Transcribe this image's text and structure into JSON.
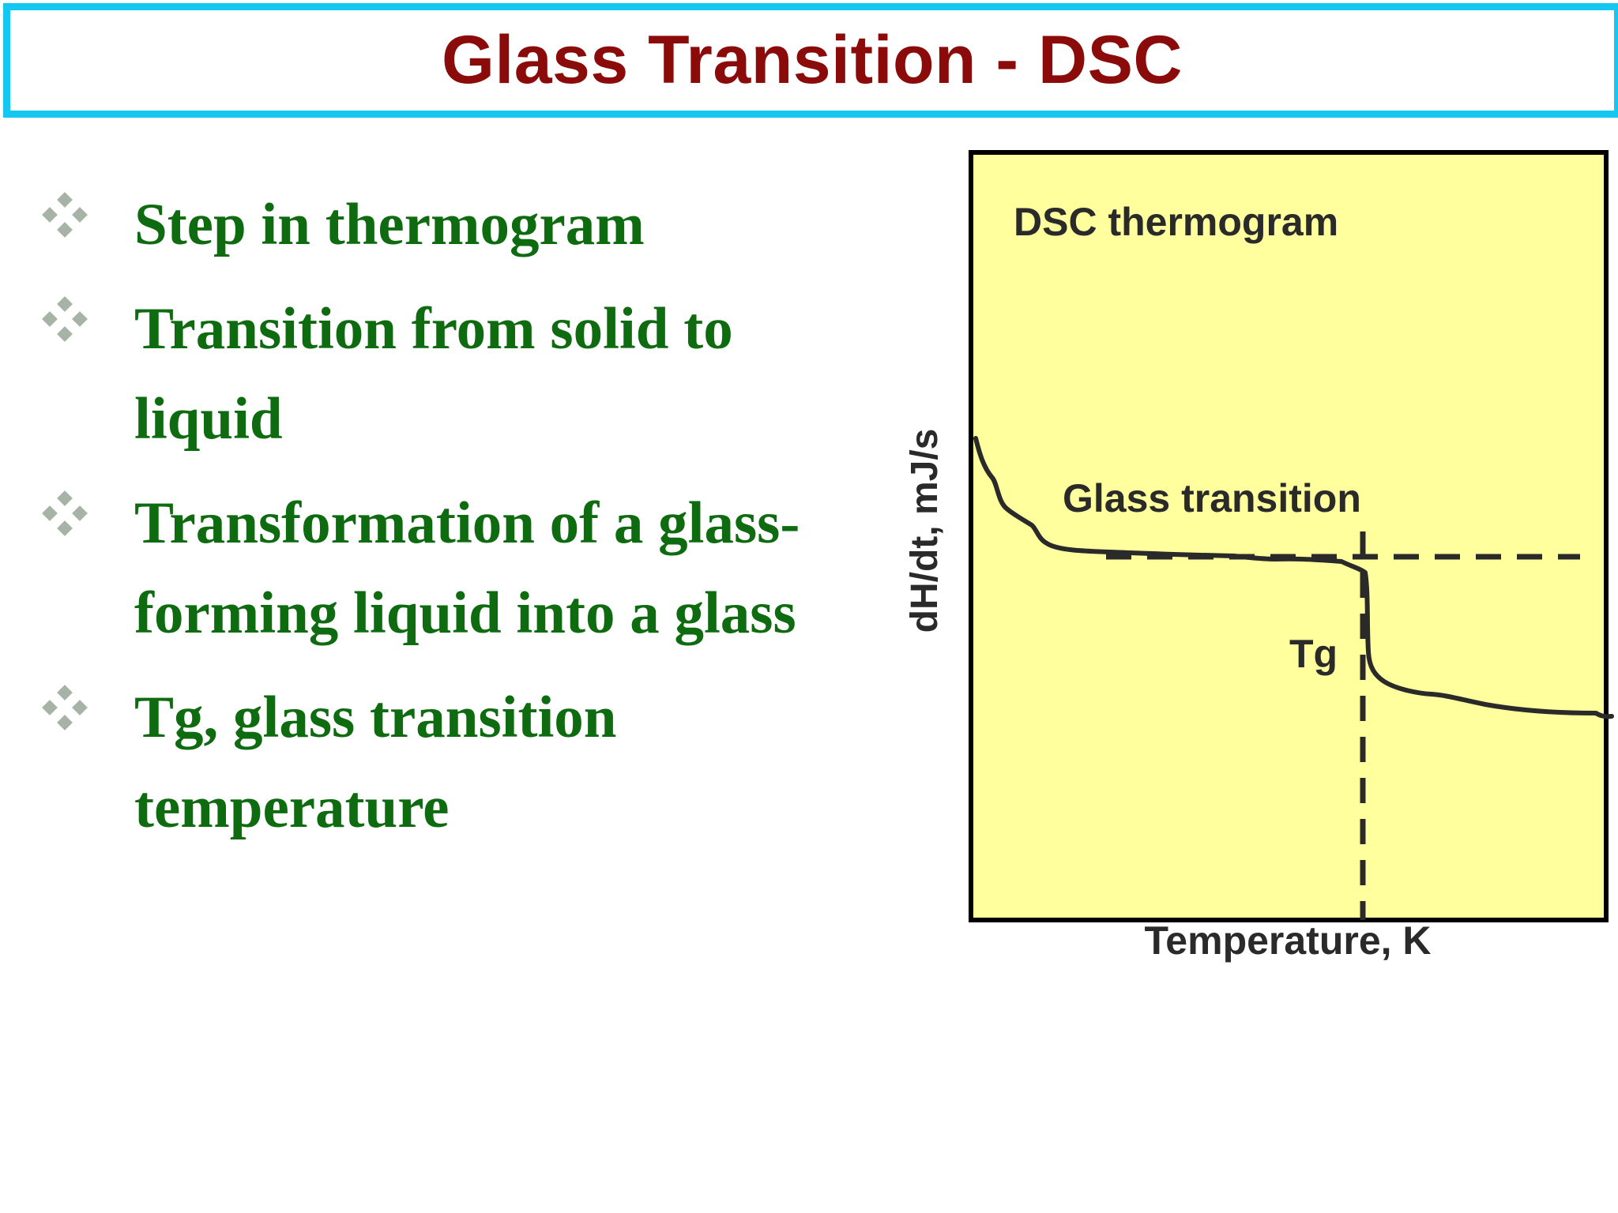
{
  "slide": {
    "title": "Glass Transition - DSC"
  },
  "bullets": [
    {
      "text": "Step in thermogram"
    },
    {
      "text": "Transition from solid to liquid"
    },
    {
      "text": "Transformation of a glass-forming liquid into a glass"
    },
    {
      "text": "Tg, glass transition temperature"
    }
  ],
  "figure": {
    "box_label": "DSC thermogram",
    "transition_label": "Glass transition",
    "tg_label": "Tg",
    "y_axis_label": "dH/dt, mJ/s",
    "x_axis_label": "Temperature, K",
    "colors": {
      "panel_fill": "#ffff9e",
      "curve": "#2a2a2a",
      "bullet_marker": "#a6b3a6"
    }
  }
}
